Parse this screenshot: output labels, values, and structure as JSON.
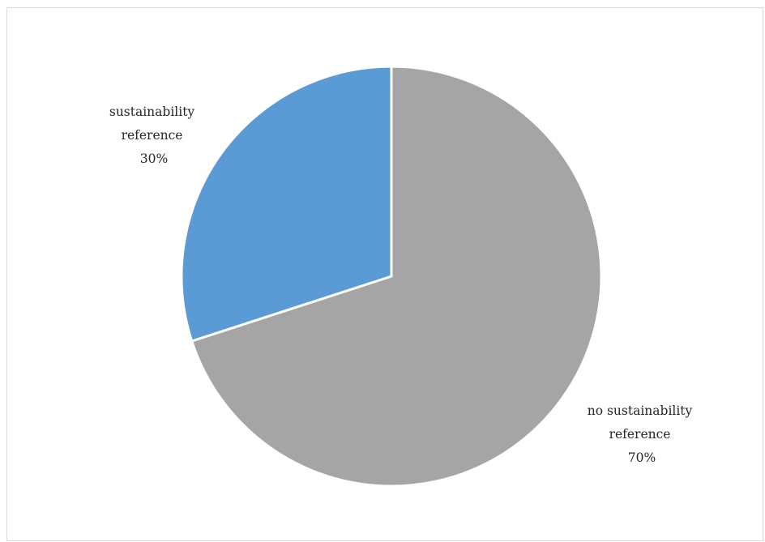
{
  "chart_data": {
    "type": "pie",
    "title": "",
    "slices": [
      {
        "name": "no sustainability reference",
        "label_lines": [
          "no sustainability",
          "reference"
        ],
        "value": 70,
        "value_label": "70%",
        "color": "#a5a5a5"
      },
      {
        "name": "sustainability reference",
        "label_lines": [
          "sustainability",
          "reference"
        ],
        "value": 30,
        "value_label": "30%",
        "color": "#5b9bd5"
      }
    ],
    "start_angle_deg": 0,
    "direction": "clockwise",
    "legend": "none",
    "data_labels": "outside"
  }
}
